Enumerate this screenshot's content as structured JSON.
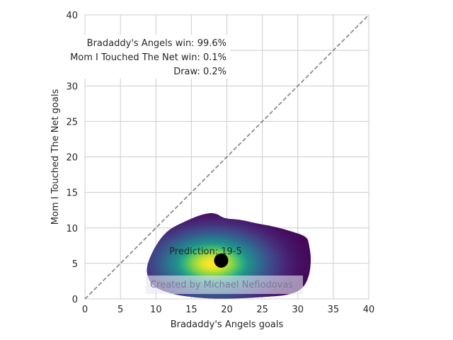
{
  "chart_data": {
    "type": "heatmap",
    "xlabel": "Bradaddy's Angels goals",
    "ylabel": "Mom I Touched The Net goals",
    "xlim": [
      0,
      40
    ],
    "ylim": [
      0,
      40
    ],
    "xticks": [
      "0",
      "5",
      "10",
      "15",
      "20",
      "25",
      "30",
      "35",
      "40"
    ],
    "yticks": [
      "0",
      "5",
      "10",
      "15",
      "20",
      "25",
      "30",
      "35",
      "40"
    ],
    "grid": true,
    "diagonal_line": {
      "from": [
        0,
        0
      ],
      "to": [
        40,
        40
      ],
      "style": "dashed",
      "color": "#808080"
    },
    "density": {
      "colormap": "viridis",
      "center": [
        18,
        5
      ],
      "sx": 4.5,
      "sy": 2.6,
      "outline": [
        [
          8.6,
          4.5
        ],
        [
          9.8,
          7.3
        ],
        [
          11.5,
          9.6
        ],
        [
          13.8,
          10.8
        ],
        [
          16.4,
          11.9
        ],
        [
          18.3,
          12.2
        ],
        [
          19.6,
          11.3
        ],
        [
          21.8,
          11.2
        ],
        [
          24.3,
          10.6
        ],
        [
          26.7,
          10.2
        ],
        [
          28.8,
          9.6
        ],
        [
          31.3,
          8.8
        ],
        [
          31.6,
          7.6
        ],
        [
          31.9,
          5.6
        ],
        [
          31.6,
          3.1
        ],
        [
          30.6,
          1.3
        ],
        [
          28.5,
          0.5
        ],
        [
          25.5,
          0.3
        ],
        [
          22.5,
          0.1
        ],
        [
          18.5,
          0
        ],
        [
          15.5,
          0.2
        ],
        [
          12.5,
          0.6
        ],
        [
          9.8,
          1.6
        ],
        [
          8.9,
          2.8
        ]
      ]
    },
    "prediction_point": {
      "x": 19.2,
      "y": 5.4,
      "label": "Prediction: 19-5",
      "color": "#000000"
    },
    "outcomes": [
      "Bradaddy's Angels win: 99.6%",
      "Mom I Touched The Net win: 0.1%",
      "Draw: 0.2%"
    ],
    "watermark": "Created by Michael Nefiodovas"
  }
}
